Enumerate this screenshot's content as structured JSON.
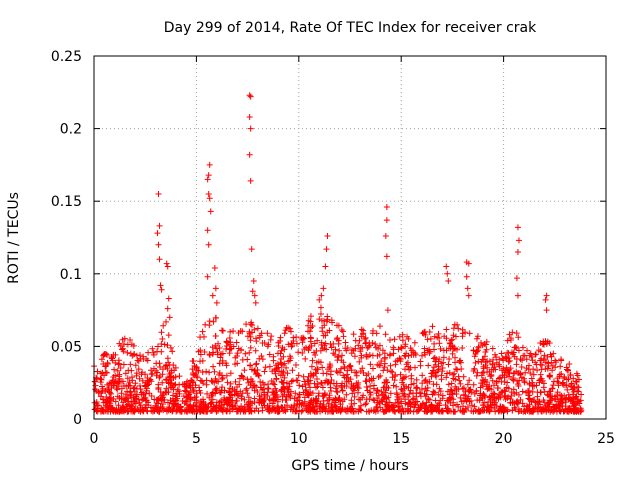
{
  "chart_data": {
    "type": "scatter",
    "title": "Day 299 of 2014, Rate Of TEC Index for receiver crak",
    "xlabel": "GPS time / hours",
    "ylabel": "ROTI / TECUs",
    "xlim": [
      0,
      25
    ],
    "ylim": [
      0,
      0.25
    ],
    "x_ticks": [
      0,
      5,
      10,
      15,
      20,
      25
    ],
    "x_tick_labels": [
      "0",
      "5",
      "10",
      "15",
      "20",
      "25"
    ],
    "y_ticks": [
      0,
      0.05,
      0.1,
      0.15,
      0.2,
      0.25
    ],
    "y_tick_labels": [
      "0",
      "0.05",
      "0.1",
      "0.15",
      "0.2",
      "0.25"
    ],
    "grid": true,
    "marker": "+",
    "color": "#ff0000",
    "x_data_range": [
      0,
      23.8
    ],
    "series": [
      {
        "name": "ROTI",
        "points": [
          [
            3.15,
            0.155
          ],
          [
            3.2,
            0.133
          ],
          [
            3.1,
            0.128
          ],
          [
            3.15,
            0.12
          ],
          [
            3.2,
            0.11
          ],
          [
            3.25,
            0.092
          ],
          [
            3.3,
            0.089
          ],
          [
            3.55,
            0.107
          ],
          [
            3.6,
            0.105
          ],
          [
            3.65,
            0.083
          ],
          [
            3.6,
            0.076
          ],
          [
            3.7,
            0.07
          ],
          [
            5.65,
            0.175
          ],
          [
            5.6,
            0.168
          ],
          [
            5.55,
            0.165
          ],
          [
            5.6,
            0.155
          ],
          [
            5.65,
            0.152
          ],
          [
            5.7,
            0.143
          ],
          [
            5.55,
            0.13
          ],
          [
            5.6,
            0.12
          ],
          [
            5.55,
            0.098
          ],
          [
            5.9,
            0.104
          ],
          [
            5.95,
            0.09
          ],
          [
            5.8,
            0.085
          ],
          [
            6.0,
            0.08
          ],
          [
            7.6,
            0.223
          ],
          [
            7.65,
            0.222
          ],
          [
            7.6,
            0.208
          ],
          [
            7.65,
            0.2
          ],
          [
            7.6,
            0.182
          ],
          [
            7.65,
            0.164
          ],
          [
            7.7,
            0.117
          ],
          [
            7.8,
            0.095
          ],
          [
            7.75,
            0.088
          ],
          [
            7.85,
            0.085
          ],
          [
            7.9,
            0.08
          ],
          [
            11.4,
            0.126
          ],
          [
            11.35,
            0.117
          ],
          [
            11.3,
            0.105
          ],
          [
            11.2,
            0.09
          ],
          [
            11.1,
            0.085
          ],
          [
            11.0,
            0.082
          ],
          [
            14.3,
            0.146
          ],
          [
            14.3,
            0.137
          ],
          [
            14.25,
            0.126
          ],
          [
            14.3,
            0.112
          ],
          [
            14.35,
            0.075
          ],
          [
            17.2,
            0.105
          ],
          [
            17.25,
            0.1
          ],
          [
            17.3,
            0.095
          ],
          [
            18.2,
            0.108
          ],
          [
            18.3,
            0.107
          ],
          [
            18.2,
            0.098
          ],
          [
            18.25,
            0.09
          ],
          [
            18.3,
            0.085
          ],
          [
            20.7,
            0.132
          ],
          [
            20.75,
            0.123
          ],
          [
            20.7,
            0.115
          ],
          [
            20.65,
            0.097
          ],
          [
            20.7,
            0.085
          ],
          [
            22.1,
            0.085
          ],
          [
            22.05,
            0.082
          ],
          [
            22.1,
            0.075
          ]
        ]
      }
    ],
    "dense_band": {
      "description_values": [
        [
          0,
          0.04
        ],
        [
          0.5,
          0.045
        ],
        [
          1,
          0.045
        ],
        [
          1.5,
          0.06
        ],
        [
          2,
          0.05
        ],
        [
          2.5,
          0.045
        ],
        [
          3,
          0.05
        ],
        [
          3.5,
          0.07
        ],
        [
          4,
          0.035
        ],
        [
          4.5,
          0.025
        ],
        [
          5,
          0.05
        ],
        [
          5.5,
          0.07
        ],
        [
          6,
          0.07
        ],
        [
          6.5,
          0.065
        ],
        [
          7,
          0.06
        ],
        [
          7.5,
          0.07
        ],
        [
          8,
          0.07
        ],
        [
          8.5,
          0.06
        ],
        [
          9,
          0.06
        ],
        [
          9.5,
          0.065
        ],
        [
          10,
          0.06
        ],
        [
          10.5,
          0.07
        ],
        [
          11,
          0.08
        ],
        [
          11.5,
          0.07
        ],
        [
          12,
          0.065
        ],
        [
          12.5,
          0.06
        ],
        [
          13,
          0.065
        ],
        [
          13.5,
          0.06
        ],
        [
          14,
          0.065
        ],
        [
          14.5,
          0.06
        ],
        [
          15,
          0.06
        ],
        [
          15.5,
          0.055
        ],
        [
          16,
          0.06
        ],
        [
          16.5,
          0.065
        ],
        [
          17,
          0.06
        ],
        [
          17.5,
          0.065
        ],
        [
          18,
          0.07
        ],
        [
          18.5,
          0.06
        ],
        [
          19,
          0.055
        ],
        [
          19.5,
          0.05
        ],
        [
          20,
          0.05
        ],
        [
          20.5,
          0.065
        ],
        [
          21,
          0.05
        ],
        [
          21.5,
          0.05
        ],
        [
          22,
          0.06
        ],
        [
          22.5,
          0.045
        ],
        [
          23,
          0.04
        ],
        [
          23.5,
          0.035
        ],
        [
          23.8,
          0.03
        ]
      ],
      "floor": 0.005
    }
  }
}
